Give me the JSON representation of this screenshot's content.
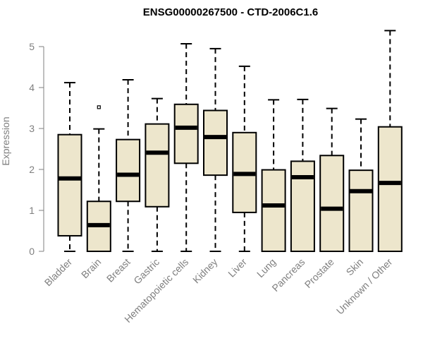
{
  "chart_data": {
    "type": "boxplot",
    "title": "ENSG00000267500 - CTD-2006C1.6",
    "xlabel": "",
    "ylabel": "Expression",
    "ylim": [
      0,
      5.5
    ],
    "yticks": [
      0,
      1,
      2,
      3,
      4,
      5
    ],
    "grid": false,
    "box_fill": "#ede6cc",
    "box_stroke": "#000000",
    "axis_color": "#7f7f7f",
    "categories": [
      "Bladder",
      "Brain",
      "Breast",
      "Gastric",
      "Hematopoietic cells",
      "Kidney",
      "Liver",
      "Lung",
      "Pancreas",
      "Prostate",
      "Skin",
      "Unknown / Other"
    ],
    "boxes": [
      {
        "whisker_low": 0,
        "q1": 0.38,
        "median": 1.78,
        "q3": 2.85,
        "whisker_high": 4.12,
        "outliers": []
      },
      {
        "whisker_low": 0,
        "q1": 0.0,
        "median": 0.64,
        "q3": 1.22,
        "whisker_high": 2.99,
        "outliers": [
          3.52
        ]
      },
      {
        "whisker_low": 0,
        "q1": 1.22,
        "median": 1.87,
        "q3": 2.73,
        "whisker_high": 4.19,
        "outliers": []
      },
      {
        "whisker_low": 0,
        "q1": 1.09,
        "median": 2.41,
        "q3": 3.11,
        "whisker_high": 3.73,
        "outliers": []
      },
      {
        "whisker_low": 0,
        "q1": 2.15,
        "median": 3.02,
        "q3": 3.59,
        "whisker_high": 5.07,
        "outliers": []
      },
      {
        "whisker_low": 0,
        "q1": 1.86,
        "median": 2.79,
        "q3": 3.44,
        "whisker_high": 4.95,
        "outliers": []
      },
      {
        "whisker_low": 0,
        "q1": 0.95,
        "median": 1.89,
        "q3": 2.9,
        "whisker_high": 4.52,
        "outliers": []
      },
      {
        "whisker_low": 0,
        "q1": 0.0,
        "median": 1.12,
        "q3": 1.99,
        "whisker_high": 3.7,
        "outliers": []
      },
      {
        "whisker_low": 0,
        "q1": 0.0,
        "median": 1.81,
        "q3": 2.2,
        "whisker_high": 3.71,
        "outliers": []
      },
      {
        "whisker_low": 0,
        "q1": 0.0,
        "median": 1.04,
        "q3": 2.34,
        "whisker_high": 3.49,
        "outliers": []
      },
      {
        "whisker_low": 0,
        "q1": 0.0,
        "median": 1.47,
        "q3": 1.98,
        "whisker_high": 3.23,
        "outliers": []
      },
      {
        "whisker_low": 0,
        "q1": 0.0,
        "median": 1.67,
        "q3": 3.04,
        "whisker_high": 5.39,
        "outliers": []
      }
    ]
  }
}
